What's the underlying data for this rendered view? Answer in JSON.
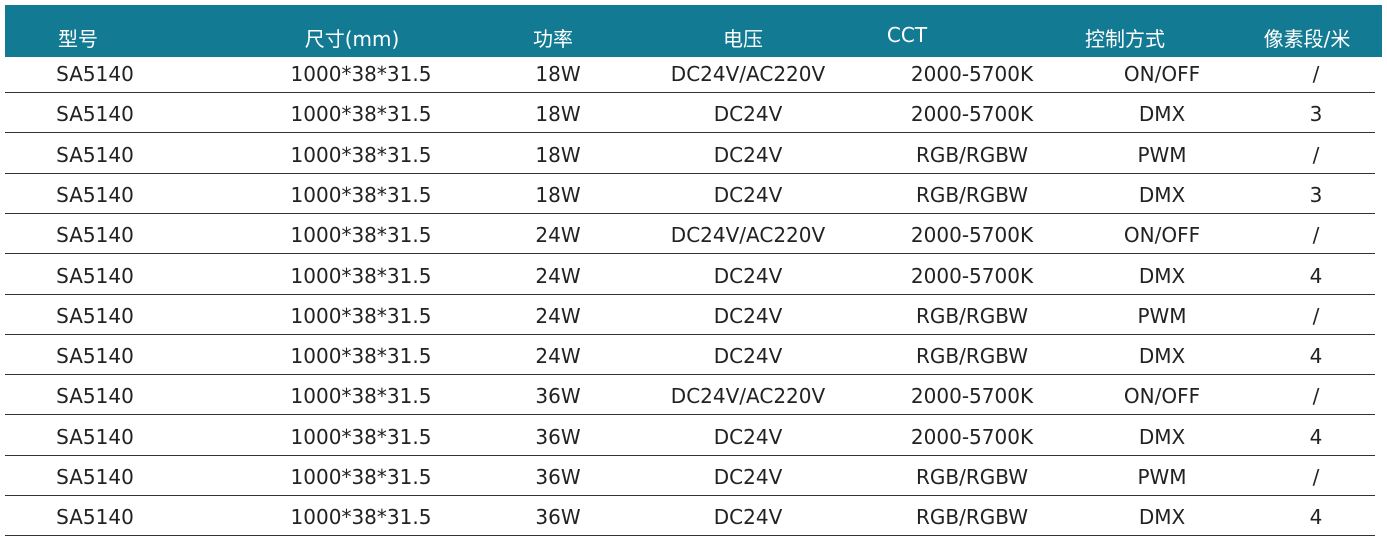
{
  "table": {
    "header": [
      "型号",
      "尺寸(mm)",
      "功率",
      "电压",
      "CCT",
      "控制方式",
      "像素段/米"
    ],
    "rows": [
      [
        "SA5140",
        "1000*38*31.5",
        "18W",
        "DC24V/AC220V",
        "2000-5700K",
        "ON/OFF",
        "/"
      ],
      [
        "SA5140",
        "1000*38*31.5",
        "18W",
        "DC24V",
        "2000-5700K",
        "DMX",
        "3"
      ],
      [
        "SA5140",
        "1000*38*31.5",
        "18W",
        "DC24V",
        "RGB/RGBW",
        "PWM",
        "/"
      ],
      [
        "SA5140",
        "1000*38*31.5",
        "18W",
        "DC24V",
        "RGB/RGBW",
        "DMX",
        "3"
      ],
      [
        "SA5140",
        "1000*38*31.5",
        "24W",
        "DC24V/AC220V",
        "2000-5700K",
        "ON/OFF",
        "/"
      ],
      [
        "SA5140",
        "1000*38*31.5",
        "24W",
        "DC24V",
        "2000-5700K",
        "DMX",
        "4"
      ],
      [
        "SA5140",
        "1000*38*31.5",
        "24W",
        "DC24V",
        "RGB/RGBW",
        "PWM",
        "/"
      ],
      [
        "SA5140",
        "1000*38*31.5",
        "24W",
        "DC24V",
        "RGB/RGBW",
        "DMX",
        "4"
      ],
      [
        "SA5140",
        "1000*38*31.5",
        "36W",
        "DC24V/AC220V",
        "2000-5700K",
        "ON/OFF",
        "/"
      ],
      [
        "SA5140",
        "1000*38*31.5",
        "36W",
        "DC24V",
        "2000-5700K",
        "DMX",
        "4"
      ],
      [
        "SA5140",
        "1000*38*31.5",
        "36W",
        "DC24V",
        "RGB/RGBW",
        "PWM",
        "/"
      ],
      [
        "SA5140",
        "1000*38*31.5",
        "36W",
        "DC24V",
        "RGB/RGBW",
        "DMX",
        "4"
      ]
    ]
  }
}
